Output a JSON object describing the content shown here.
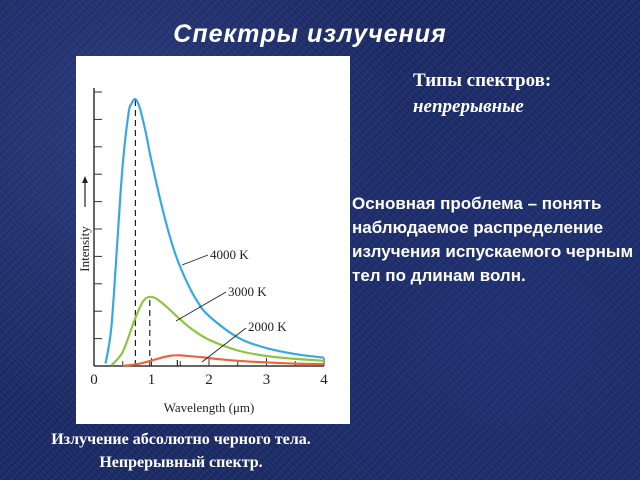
{
  "slide": {
    "title": "Спектры излучения",
    "types_heading": "Типы спектров:",
    "types_value": "непрерывные",
    "problem_text": "Основная проблема – понять наблюдаемое распределение излучения испускаемого черным тел по длинам волн.",
    "caption_line1": "Излучение абсолютно черного тела.",
    "caption_line2": "Непрерывный спектр."
  },
  "colors": {
    "background": "#1b2a66",
    "series_4000": "#3aa8e0",
    "series_3000": "#8cc63e",
    "series_2000": "#e8663a",
    "dashed": "#222222"
  },
  "chart_data": {
    "type": "line",
    "xlabel": "Wavelength (μm)",
    "ylabel": "Intensity",
    "xlim": [
      0,
      4
    ],
    "ylim": [
      0,
      11.5
    ],
    "x_ticks": [
      "0",
      "1",
      "2",
      "3",
      "4"
    ],
    "grid": false,
    "series": [
      {
        "name": "4000 K",
        "x": [
          0.2,
          0.3,
          0.4,
          0.5,
          0.6,
          0.65,
          0.72,
          0.8,
          0.9,
          1.0,
          1.2,
          1.4,
          1.6,
          1.8,
          2.0,
          2.5,
          3.0,
          3.5,
          4.0
        ],
        "values": [
          0.1,
          1.6,
          5.0,
          8.5,
          10.6,
          11.0,
          11.2,
          10.8,
          9.8,
          8.6,
          6.5,
          4.8,
          3.6,
          2.7,
          2.1,
          1.2,
          0.75,
          0.5,
          0.35
        ]
      },
      {
        "name": "3000 K",
        "x": [
          0.3,
          0.5,
          0.7,
          0.85,
          0.97,
          1.1,
          1.3,
          1.5,
          1.7,
          2.0,
          2.5,
          3.0,
          3.5,
          4.0
        ],
        "values": [
          0.02,
          0.6,
          1.9,
          2.7,
          2.9,
          2.8,
          2.4,
          1.95,
          1.55,
          1.1,
          0.65,
          0.42,
          0.3,
          0.22
        ]
      },
      {
        "name": "2000 K",
        "x": [
          0.5,
          0.8,
          1.1,
          1.3,
          1.45,
          1.6,
          1.9,
          2.2,
          2.6,
          3.0,
          3.5,
          4.0
        ],
        "values": [
          0.0,
          0.1,
          0.3,
          0.42,
          0.45,
          0.43,
          0.36,
          0.28,
          0.2,
          0.15,
          0.1,
          0.08
        ]
      }
    ],
    "peak_markers": [
      0.72,
      0.97,
      1.45
    ]
  }
}
